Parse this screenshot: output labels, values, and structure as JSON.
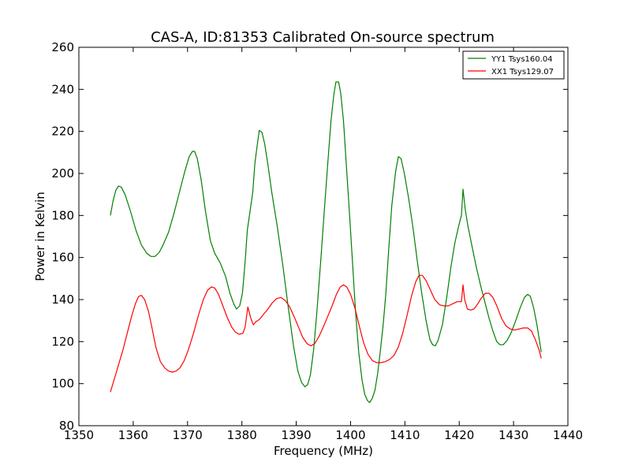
{
  "chart_data": {
    "type": "line",
    "title": "CAS-A, ID:81353 Calibrated On-source spectrum",
    "xlabel": "Frequency (MHz)",
    "ylabel": "Power in Kelvin",
    "xlim": [
      1350,
      1440
    ],
    "ylim": [
      80,
      260
    ],
    "xticks": [
      1350,
      1360,
      1370,
      1380,
      1390,
      1400,
      1410,
      1420,
      1430,
      1440
    ],
    "yticks": [
      80,
      100,
      120,
      140,
      160,
      180,
      200,
      220,
      240,
      260
    ],
    "grid": false,
    "legend_position": "top-right",
    "series": [
      {
        "name": "YY1 Tsys160.04",
        "color": "#008000",
        "points": [
          [
            1355.8,
            180
          ],
          [
            1356.3,
            187
          ],
          [
            1356.8,
            192
          ],
          [
            1357.3,
            194
          ],
          [
            1357.8,
            193.5
          ],
          [
            1358.5,
            190
          ],
          [
            1359.5,
            182
          ],
          [
            1360.5,
            173
          ],
          [
            1361.5,
            166
          ],
          [
            1362.5,
            162
          ],
          [
            1363.3,
            160.5
          ],
          [
            1364,
            160.5
          ],
          [
            1364.8,
            162.5
          ],
          [
            1365.5,
            166
          ],
          [
            1366.5,
            172
          ],
          [
            1367.5,
            181
          ],
          [
            1368.5,
            191
          ],
          [
            1369.5,
            201
          ],
          [
            1370.3,
            208
          ],
          [
            1370.9,
            210.5
          ],
          [
            1371.3,
            210.5
          ],
          [
            1371.8,
            207
          ],
          [
            1372.5,
            197
          ],
          [
            1373.3,
            182
          ],
          [
            1374.2,
            168
          ],
          [
            1375,
            162
          ],
          [
            1376,
            157.5
          ],
          [
            1377,
            151
          ],
          [
            1377.8,
            143
          ],
          [
            1378.5,
            138
          ],
          [
            1379,
            135.5
          ],
          [
            1379.6,
            137
          ],
          [
            1380.1,
            143
          ],
          [
            1380.6,
            158
          ],
          [
            1381,
            173
          ],
          [
            1381.5,
            182
          ],
          [
            1382,
            191
          ],
          [
            1382.4,
            205
          ],
          [
            1382.8,
            213
          ],
          [
            1383.2,
            220.5
          ],
          [
            1383.7,
            219.5
          ],
          [
            1384.2,
            214
          ],
          [
            1384.8,
            204
          ],
          [
            1385.5,
            191
          ],
          [
            1386.5,
            175
          ],
          [
            1387.5,
            157
          ],
          [
            1388.5,
            137
          ],
          [
            1389.5,
            118
          ],
          [
            1390.3,
            106
          ],
          [
            1391,
            100.5
          ],
          [
            1391.6,
            98.5
          ],
          [
            1392.1,
            99.5
          ],
          [
            1392.6,
            104
          ],
          [
            1393.2,
            116
          ],
          [
            1393.8,
            134
          ],
          [
            1394.5,
            158
          ],
          [
            1395.3,
            187
          ],
          [
            1395.9,
            208
          ],
          [
            1396.4,
            225
          ],
          [
            1396.9,
            237
          ],
          [
            1397.3,
            243.5
          ],
          [
            1397.8,
            243.5
          ],
          [
            1398.2,
            238
          ],
          [
            1398.7,
            225
          ],
          [
            1399.2,
            205
          ],
          [
            1399.8,
            181
          ],
          [
            1400.4,
            156
          ],
          [
            1400.9,
            135
          ],
          [
            1401.5,
            115
          ],
          [
            1402.1,
            102
          ],
          [
            1402.6,
            95
          ],
          [
            1403.1,
            92
          ],
          [
            1403.5,
            91
          ],
          [
            1404,
            93
          ],
          [
            1404.5,
            97
          ],
          [
            1405,
            105
          ],
          [
            1405.5,
            116
          ],
          [
            1406,
            128
          ],
          [
            1406.5,
            143
          ],
          [
            1407,
            163
          ],
          [
            1407.6,
            185
          ],
          [
            1408.3,
            201
          ],
          [
            1408.8,
            208
          ],
          [
            1409.3,
            207
          ],
          [
            1409.9,
            200
          ],
          [
            1410.7,
            188
          ],
          [
            1411.5,
            174
          ],
          [
            1412.3,
            158
          ],
          [
            1413.1,
            143
          ],
          [
            1413.9,
            130
          ],
          [
            1414.6,
            121
          ],
          [
            1415.1,
            118.5
          ],
          [
            1415.6,
            118
          ],
          [
            1416.1,
            120.5
          ],
          [
            1416.9,
            128
          ],
          [
            1417.7,
            141
          ],
          [
            1418.5,
            156
          ],
          [
            1419.2,
            167
          ],
          [
            1419.9,
            175
          ],
          [
            1420.4,
            180
          ],
          [
            1420.7,
            192.5
          ],
          [
            1421.1,
            183
          ],
          [
            1421.6,
            175
          ],
          [
            1422.3,
            166
          ],
          [
            1423.1,
            156
          ],
          [
            1423.9,
            147
          ],
          [
            1424.7,
            139
          ],
          [
            1425.5,
            131
          ],
          [
            1426.2,
            125
          ],
          [
            1426.9,
            120
          ],
          [
            1427.5,
            118.5
          ],
          [
            1428.1,
            118.5
          ],
          [
            1428.8,
            120.5
          ],
          [
            1429.6,
            124.5
          ],
          [
            1430.4,
            130
          ],
          [
            1431.2,
            136
          ],
          [
            1432,
            141
          ],
          [
            1432.6,
            142.5
          ],
          [
            1433.1,
            141.5
          ],
          [
            1433.7,
            136
          ],
          [
            1434.3,
            128
          ],
          [
            1434.8,
            120
          ],
          [
            1435.1,
            115
          ]
        ]
      },
      {
        "name": "XX1 Tsys129.07",
        "color": "#ff0000",
        "points": [
          [
            1355.8,
            96
          ],
          [
            1356.5,
            102
          ],
          [
            1357.3,
            109
          ],
          [
            1358.1,
            116
          ],
          [
            1358.9,
            124
          ],
          [
            1359.7,
            132
          ],
          [
            1360.4,
            138
          ],
          [
            1361,
            141.5
          ],
          [
            1361.5,
            142
          ],
          [
            1362.1,
            140
          ],
          [
            1362.8,
            134.5
          ],
          [
            1363.5,
            126
          ],
          [
            1364.2,
            117
          ],
          [
            1365,
            110.5
          ],
          [
            1365.8,
            107.5
          ],
          [
            1366.5,
            106
          ],
          [
            1367.2,
            105.5
          ],
          [
            1367.9,
            106
          ],
          [
            1368.6,
            107.5
          ],
          [
            1369.4,
            111
          ],
          [
            1370.2,
            116.5
          ],
          [
            1371.1,
            124
          ],
          [
            1372,
            132.5
          ],
          [
            1372.9,
            140
          ],
          [
            1373.7,
            144.5
          ],
          [
            1374.4,
            146
          ],
          [
            1375,
            145.5
          ],
          [
            1375.7,
            142.5
          ],
          [
            1376.5,
            137
          ],
          [
            1377.3,
            131.5
          ],
          [
            1378.1,
            127
          ],
          [
            1378.8,
            124.5
          ],
          [
            1379.5,
            123.5
          ],
          [
            1380.2,
            124
          ],
          [
            1380.6,
            127
          ],
          [
            1381.1,
            136.5
          ],
          [
            1381.6,
            131.5
          ],
          [
            1382.1,
            128
          ],
          [
            1382.6,
            129.5
          ],
          [
            1383.2,
            130.5
          ],
          [
            1384,
            133
          ],
          [
            1384.8,
            135.5
          ],
          [
            1385.6,
            138.5
          ],
          [
            1386.4,
            140.5
          ],
          [
            1387.2,
            141
          ],
          [
            1388,
            139.5
          ],
          [
            1388.8,
            136.5
          ],
          [
            1389.6,
            132
          ],
          [
            1390.4,
            127
          ],
          [
            1391.2,
            122
          ],
          [
            1392,
            119
          ],
          [
            1392.7,
            118
          ],
          [
            1393.4,
            119
          ],
          [
            1394.2,
            122.5
          ],
          [
            1395,
            127
          ],
          [
            1395.8,
            132
          ],
          [
            1396.6,
            137
          ],
          [
            1397.4,
            142.5
          ],
          [
            1398.1,
            146
          ],
          [
            1398.7,
            147
          ],
          [
            1399.3,
            146
          ],
          [
            1400,
            142.5
          ],
          [
            1400.8,
            136
          ],
          [
            1401.6,
            127.5
          ],
          [
            1402.4,
            119.5
          ],
          [
            1403.2,
            114
          ],
          [
            1404,
            111
          ],
          [
            1404.8,
            110
          ],
          [
            1405.6,
            110
          ],
          [
            1406.4,
            110.5
          ],
          [
            1407.2,
            111.5
          ],
          [
            1408,
            113.5
          ],
          [
            1408.8,
            117.5
          ],
          [
            1409.6,
            124
          ],
          [
            1410.4,
            132.5
          ],
          [
            1411.2,
            141.5
          ],
          [
            1412,
            148.5
          ],
          [
            1412.6,
            151.5
          ],
          [
            1413.2,
            151.5
          ],
          [
            1413.9,
            149
          ],
          [
            1414.7,
            144.5
          ],
          [
            1415.5,
            140
          ],
          [
            1416.4,
            137.5
          ],
          [
            1417.2,
            137
          ],
          [
            1418,
            137
          ],
          [
            1418.8,
            138
          ],
          [
            1419.6,
            139
          ],
          [
            1420.4,
            139
          ],
          [
            1420.7,
            147
          ],
          [
            1421,
            140
          ],
          [
            1421.5,
            135.5
          ],
          [
            1422.1,
            135
          ],
          [
            1422.7,
            135.5
          ],
          [
            1423.3,
            137.5
          ],
          [
            1424,
            140.5
          ],
          [
            1424.8,
            143
          ],
          [
            1425.5,
            143
          ],
          [
            1426.2,
            141
          ],
          [
            1427,
            136.5
          ],
          [
            1427.8,
            131
          ],
          [
            1428.6,
            127.5
          ],
          [
            1429.4,
            126
          ],
          [
            1430.2,
            125.5
          ],
          [
            1431,
            126
          ],
          [
            1431.8,
            126.5
          ],
          [
            1432.6,
            126.5
          ],
          [
            1433.3,
            125
          ],
          [
            1434,
            121
          ],
          [
            1434.7,
            116
          ],
          [
            1435.1,
            112
          ]
        ]
      }
    ]
  }
}
